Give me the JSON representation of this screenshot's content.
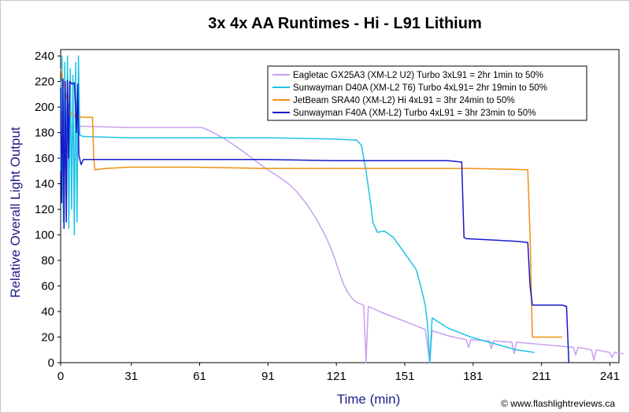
{
  "chart_data": {
    "type": "line",
    "title": "3x 4x AA Runtimes - Hi - L91 Lithium",
    "xlabel": "Time (min)",
    "ylabel": "Relative Overall Light Output",
    "xlim": [
      0,
      245
    ],
    "ylim": [
      0,
      245
    ],
    "x_ticks": [
      "0",
      "31",
      "61",
      "91",
      "121",
      "151",
      "181",
      "211",
      "241"
    ],
    "y_ticks": [
      "0",
      "20",
      "40",
      "60",
      "80",
      "100",
      "120",
      "140",
      "160",
      "180",
      "200",
      "220",
      "240"
    ],
    "grid": false,
    "legend_position": "top-right",
    "credit": "© www.flashlightreviews.ca",
    "series": [
      {
        "name": "Eagletac GX25A3 (XM-L2 U2) Turbo 3xL91 = 2hr 1min to 50%",
        "color": "#c8a0f0",
        "points": [
          [
            0,
            220
          ],
          [
            1,
            200
          ],
          [
            2,
            188
          ],
          [
            4,
            185
          ],
          [
            10,
            185
          ],
          [
            30,
            184
          ],
          [
            50,
            184
          ],
          [
            62,
            184
          ],
          [
            66,
            181
          ],
          [
            72,
            175
          ],
          [
            78,
            168
          ],
          [
            84,
            160
          ],
          [
            90,
            152
          ],
          [
            96,
            145
          ],
          [
            100,
            140
          ],
          [
            104,
            133
          ],
          [
            108,
            124
          ],
          [
            112,
            113
          ],
          [
            116,
            100
          ],
          [
            118,
            92
          ],
          [
            120,
            83
          ],
          [
            122,
            72
          ],
          [
            124,
            62
          ],
          [
            126,
            55
          ],
          [
            128,
            50
          ],
          [
            130,
            47
          ],
          [
            133,
            45
          ],
          [
            134,
            0
          ],
          [
            135,
            44
          ],
          [
            140,
            40
          ],
          [
            150,
            33
          ],
          [
            160,
            26
          ],
          [
            162,
            0
          ],
          [
            163,
            25
          ],
          [
            170,
            21
          ],
          [
            175,
            19
          ],
          [
            178,
            18
          ],
          [
            179,
            12
          ],
          [
            180,
            18
          ],
          [
            188,
            17
          ],
          [
            189,
            11
          ],
          [
            190,
            17
          ],
          [
            198,
            16
          ],
          [
            199,
            7
          ],
          [
            200,
            16
          ],
          [
            225,
            12
          ],
          [
            226,
            6
          ],
          [
            227,
            12
          ],
          [
            233,
            10
          ],
          [
            234,
            2
          ],
          [
            235,
            10
          ],
          [
            241,
            8
          ],
          [
            242,
            4
          ],
          [
            243,
            8
          ],
          [
            247,
            7
          ]
        ]
      },
      {
        "name": "Sunwayman D40A (XM-L2 T6) Turbo 4xL91= 2hr 19min to 50%",
        "color": "#1ec2e6",
        "points": [
          [
            0,
            150
          ],
          [
            0.6,
            240
          ],
          [
            1.2,
            110
          ],
          [
            1.8,
            235
          ],
          [
            2.4,
            130
          ],
          [
            3,
            240
          ],
          [
            3.6,
            105
          ],
          [
            4.2,
            230
          ],
          [
            4.8,
            120
          ],
          [
            5.4,
            225
          ],
          [
            6,
            100
          ],
          [
            6.6,
            235
          ],
          [
            7.2,
            110
          ],
          [
            7.8,
            240
          ],
          [
            8.4,
            178
          ],
          [
            10,
            177
          ],
          [
            30,
            176
          ],
          [
            60,
            176
          ],
          [
            90,
            176
          ],
          [
            120,
            175
          ],
          [
            130,
            174
          ],
          [
            132,
            170
          ],
          [
            134,
            150
          ],
          [
            136,
            125
          ],
          [
            137,
            110
          ],
          [
            139,
            102
          ],
          [
            142,
            103
          ],
          [
            146,
            98
          ],
          [
            150,
            88
          ],
          [
            154,
            78
          ],
          [
            156,
            73
          ],
          [
            158,
            60
          ],
          [
            160,
            45
          ],
          [
            161,
            30
          ],
          [
            162,
            0
          ],
          [
            163,
            35
          ],
          [
            170,
            27
          ],
          [
            180,
            20
          ],
          [
            190,
            15
          ],
          [
            200,
            10
          ],
          [
            208,
            8
          ]
        ]
      },
      {
        "name": "JetBeam SRA40 (XM-L2) Hi 4xL91 = 3hr 24min to 50%",
        "color": "#f09010",
        "points": [
          [
            0,
            230
          ],
          [
            2,
            212
          ],
          [
            4,
            196
          ],
          [
            6,
            193
          ],
          [
            10,
            192
          ],
          [
            14,
            192
          ],
          [
            14.5,
            160
          ],
          [
            15,
            151
          ],
          [
            20,
            152
          ],
          [
            30,
            153
          ],
          [
            60,
            153
          ],
          [
            90,
            152
          ],
          [
            120,
            152
          ],
          [
            150,
            152
          ],
          [
            180,
            152
          ],
          [
            205,
            151
          ],
          [
            206,
            100
          ],
          [
            207,
            20
          ],
          [
            220,
            20
          ]
        ]
      },
      {
        "name": "Sunwayman F40A (XM-L2) Turbo 4xL91 = 3hr 23min to 50%",
        "color": "#1818c8",
        "points": [
          [
            0,
            215
          ],
          [
            0.5,
            125
          ],
          [
            1,
            222
          ],
          [
            1.5,
            105
          ],
          [
            2,
            220
          ],
          [
            2.5,
            110
          ],
          [
            3,
            221
          ],
          [
            3.5,
            160
          ],
          [
            4,
            220
          ],
          [
            5,
            218
          ],
          [
            6,
            219
          ],
          [
            7,
            180
          ],
          [
            7.5,
            218
          ],
          [
            8,
            162
          ],
          [
            9,
            155
          ],
          [
            10,
            159
          ],
          [
            30,
            159
          ],
          [
            60,
            159
          ],
          [
            90,
            159
          ],
          [
            120,
            158
          ],
          [
            150,
            158
          ],
          [
            170,
            158
          ],
          [
            176,
            157
          ],
          [
            177,
            98
          ],
          [
            178,
            97
          ],
          [
            200,
            95
          ],
          [
            205,
            94
          ],
          [
            206,
            60
          ],
          [
            207,
            45
          ],
          [
            220,
            45
          ],
          [
            222,
            44
          ],
          [
            223,
            0
          ]
        ]
      }
    ]
  }
}
